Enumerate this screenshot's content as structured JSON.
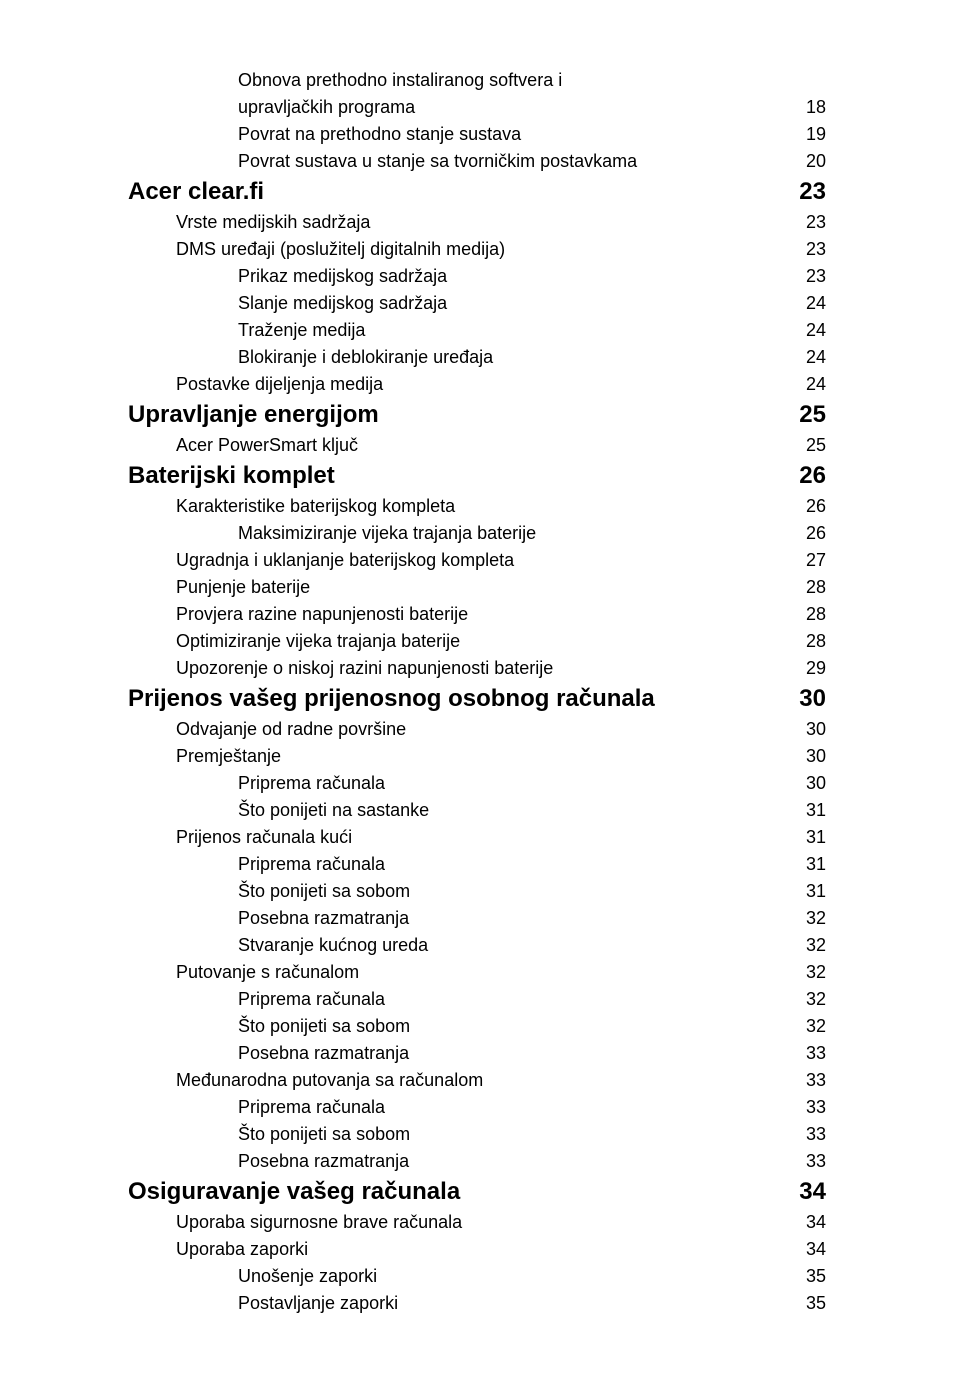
{
  "font_color": "#000000",
  "background_color": "#ffffff",
  "heading_fontsize": 24,
  "normal_fontsize": 18,
  "toc": [
    {
      "level": 3,
      "style": "normal",
      "label": "Obnova prethodno instaliranog softvera i",
      "page": ""
    },
    {
      "level": 3,
      "style": "normal",
      "label": "upravljačkih programa",
      "page": "18"
    },
    {
      "level": 3,
      "style": "normal",
      "label": "Povrat na prethodno stanje sustava",
      "page": "19"
    },
    {
      "level": 3,
      "style": "normal",
      "label": "Povrat sustava u stanje sa tvorničkim postavkama",
      "page": "20"
    },
    {
      "level": 1,
      "style": "heading",
      "label": "Acer clear.fi",
      "page": "23"
    },
    {
      "level": 2,
      "style": "normal",
      "label": "Vrste medijskih sadržaja",
      "page": "23"
    },
    {
      "level": 2,
      "style": "normal",
      "label": "DMS uređaji (poslužitelj digitalnih medija)",
      "page": "23"
    },
    {
      "level": 3,
      "style": "normal",
      "label": "Prikaz medijskog sadržaja",
      "page": "23"
    },
    {
      "level": 3,
      "style": "normal",
      "label": "Slanje medijskog sadržaja",
      "page": "24"
    },
    {
      "level": 3,
      "style": "normal",
      "label": "Traženje medija",
      "page": "24"
    },
    {
      "level": 3,
      "style": "normal",
      "label": "Blokiranje i deblokiranje uređaja",
      "page": "24"
    },
    {
      "level": 2,
      "style": "normal",
      "label": "Postavke dijeljenja medija",
      "page": "24"
    },
    {
      "level": 1,
      "style": "heading",
      "label": "Upravljanje energijom",
      "page": "25"
    },
    {
      "level": 2,
      "style": "normal",
      "label": "Acer PowerSmart ključ",
      "page": "25"
    },
    {
      "level": 1,
      "style": "heading",
      "label": "Baterijski komplet",
      "page": "26"
    },
    {
      "level": 2,
      "style": "normal",
      "label": "Karakteristike baterijskog kompleta",
      "page": "26"
    },
    {
      "level": 3,
      "style": "normal",
      "label": "Maksimiziranje vijeka trajanja baterije",
      "page": "26"
    },
    {
      "level": 2,
      "style": "normal",
      "label": "Ugradnja i uklanjanje baterijskog kompleta",
      "page": "27"
    },
    {
      "level": 2,
      "style": "normal",
      "label": "Punjenje baterije",
      "page": "28"
    },
    {
      "level": 2,
      "style": "normal",
      "label": "Provjera razine napunjenosti baterije",
      "page": "28"
    },
    {
      "level": 2,
      "style": "normal",
      "label": "Optimiziranje vijeka trajanja baterije",
      "page": "28"
    },
    {
      "level": 2,
      "style": "normal",
      "label": "Upozorenje o niskoj razini napunjenosti baterije",
      "page": "29"
    },
    {
      "level": 1,
      "style": "heading",
      "label": "Prijenos vašeg prijenosnog osobnog računala",
      "page": "30"
    },
    {
      "level": 2,
      "style": "normal",
      "label": "Odvajanje od radne površine",
      "page": "30"
    },
    {
      "level": 2,
      "style": "normal",
      "label": "Premještanje",
      "page": "30"
    },
    {
      "level": 3,
      "style": "normal",
      "label": "Priprema računala",
      "page": "30"
    },
    {
      "level": 3,
      "style": "normal",
      "label": "Što ponijeti na sastanke",
      "page": "31"
    },
    {
      "level": 2,
      "style": "normal",
      "label": "Prijenos računala kući",
      "page": "31"
    },
    {
      "level": 3,
      "style": "normal",
      "label": "Priprema računala",
      "page": "31"
    },
    {
      "level": 3,
      "style": "normal",
      "label": "Što ponijeti sa sobom",
      "page": "31"
    },
    {
      "level": 3,
      "style": "normal",
      "label": "Posebna razmatranja",
      "page": "32"
    },
    {
      "level": 3,
      "style": "normal",
      "label": "Stvaranje kućnog ureda",
      "page": "32"
    },
    {
      "level": 2,
      "style": "normal",
      "label": "Putovanje s računalom",
      "page": "32"
    },
    {
      "level": 3,
      "style": "normal",
      "label": "Priprema računala",
      "page": "32"
    },
    {
      "level": 3,
      "style": "normal",
      "label": "Što ponijeti sa sobom",
      "page": "32"
    },
    {
      "level": 3,
      "style": "normal",
      "label": "Posebna razmatranja",
      "page": "33"
    },
    {
      "level": 2,
      "style": "normal",
      "label": "Međunarodna putovanja sa računalom",
      "page": "33"
    },
    {
      "level": 3,
      "style": "normal",
      "label": "Priprema računala",
      "page": "33"
    },
    {
      "level": 3,
      "style": "normal",
      "label": "Što ponijeti sa sobom",
      "page": "33"
    },
    {
      "level": 3,
      "style": "normal",
      "label": "Posebna razmatranja",
      "page": "33"
    },
    {
      "level": 1,
      "style": "heading",
      "label": "Osiguravanje vašeg računala",
      "page": "34"
    },
    {
      "level": 2,
      "style": "normal",
      "label": "Uporaba sigurnosne brave računala",
      "page": "34"
    },
    {
      "level": 2,
      "style": "normal",
      "label": "Uporaba zaporki",
      "page": "34"
    },
    {
      "level": 3,
      "style": "normal",
      "label": "Unošenje zaporki",
      "page": "35"
    },
    {
      "level": 3,
      "style": "normal",
      "label": "Postavljanje zaporki",
      "page": "35"
    }
  ]
}
